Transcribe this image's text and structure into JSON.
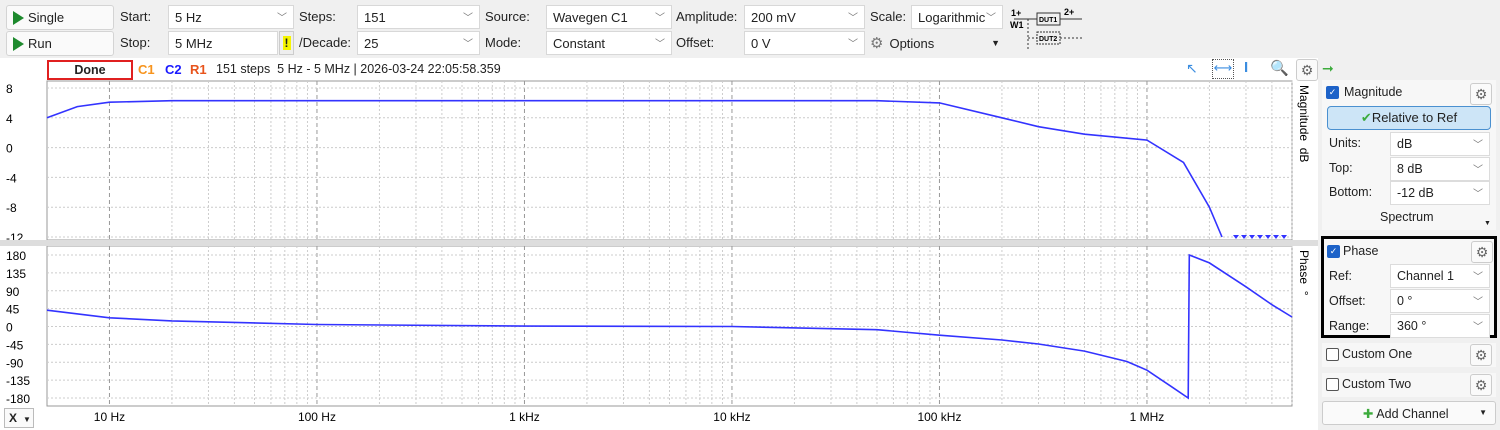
{
  "toolbar": {
    "single": "Single",
    "run": "Run",
    "start_label": "Start:",
    "start": "5 Hz",
    "stop_label": "Stop:",
    "stop": "5 MHz",
    "warn": "!",
    "steps_label": "Steps:",
    "steps": "151",
    "decade_label": "/Decade:",
    "decade": "25",
    "source_label": "Source:",
    "source": "Wavegen C1",
    "mode_label": "Mode:",
    "mode": "Constant",
    "amp_label": "Amplitude:",
    "amp": "200 mV",
    "offset_label": "Offset:",
    "offset": "0 V",
    "scale_label": "Scale:",
    "scale": "Logarithmic",
    "options": "Options",
    "diagram": {
      "in": "1+",
      "w": "W1",
      "dut1": "DUT1",
      "out": "2+",
      "dut2": "DUT2"
    }
  },
  "status": {
    "state": "Done",
    "c1": "C1",
    "c2": "C2",
    "r1": "R1",
    "info": "151 steps  5 Hz - 5 MHz | 2026-03-24 22:05:58.359"
  },
  "colors": {
    "c1": "#f7941d",
    "c2": "#1a1aff",
    "r1": "#e8541c",
    "trace": "#3333ff"
  },
  "chart_data": [
    {
      "type": "line",
      "title": "Magnitude",
      "ylabel": "Magnitude  dB",
      "ylim": [
        -12,
        8
      ],
      "yticks": [
        "8",
        "4",
        "0",
        "-4",
        "-8",
        "-12"
      ],
      "xscale": "log",
      "xlim": [
        5,
        5000000
      ],
      "x": [
        5,
        7,
        10,
        20,
        100,
        1000,
        10000,
        50000,
        100000,
        200000,
        300000,
        500000,
        1000000,
        1500000,
        2000000,
        2300000
      ],
      "values": [
        4,
        5.5,
        6.1,
        6.3,
        6.3,
        6.3,
        6.3,
        6.3,
        6,
        4,
        2.8,
        1.8,
        1.0,
        -2,
        -8,
        -12
      ]
    },
    {
      "type": "line",
      "title": "Phase",
      "ylabel": "Phase  °",
      "ylim": [
        -180,
        180
      ],
      "yticks": [
        "180",
        "135",
        "90",
        "45",
        "0",
        "-45",
        "-90",
        "-135",
        "-180"
      ],
      "xscale": "log",
      "xlim": [
        5,
        5000000
      ],
      "x": [
        5,
        10,
        20,
        100,
        1000,
        10000,
        50000,
        100000,
        200000,
        300000,
        500000,
        800000,
        1000000,
        1300000,
        1580000,
        1600000,
        2000000,
        3000000,
        4000000,
        5000000
      ],
      "values": [
        41,
        22,
        14,
        5,
        1,
        0,
        -8,
        -22,
        -34,
        -44,
        -62,
        -88,
        -110,
        -150,
        -180,
        180,
        160,
        100,
        55,
        24
      ]
    }
  ],
  "xaxis": {
    "ticks": [
      "10 Hz",
      "100 Hz",
      "1 kHz",
      "10 kHz",
      "100 kHz",
      "1 MHz"
    ],
    "x_button": "X"
  },
  "panel": {
    "magnitude": "Magnitude",
    "relative": "Relative to Ref",
    "units_label": "Units:",
    "units": "dB",
    "top_label": "Top:",
    "top": "8 dB",
    "bottom_label": "Bottom:",
    "bottom": "-12 dB",
    "spectrum": "Spectrum",
    "phase": "Phase",
    "ref_label": "Ref:",
    "ref": "Channel 1",
    "offset_label": "Offset:",
    "offset": "0 °",
    "range_label": "Range:",
    "range": "360 °",
    "custom1": "Custom One",
    "custom2": "Custom Two",
    "add": "Add Channel"
  }
}
